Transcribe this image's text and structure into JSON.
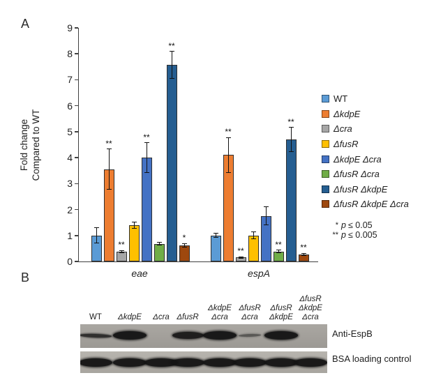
{
  "panels": {
    "a": {
      "label": "A",
      "ylabel_lines": [
        "Fold change",
        "Compared to WT"
      ]
    },
    "b": {
      "label": "B",
      "blot1_label": "Anti-EspB",
      "blot2_label": "BSA loading control"
    }
  },
  "chart_data": {
    "type": "bar",
    "title": "",
    "xlabel": "",
    "ylabel": "Fold change Compared to WT",
    "ylim": [
      0,
      9
    ],
    "yticks": [
      0,
      1,
      2,
      3,
      4,
      5,
      6,
      7,
      8,
      9
    ],
    "grid": false,
    "legend_position": "right",
    "categories": [
      "eae",
      "espA"
    ],
    "series": [
      {
        "name": "WT",
        "italic": false,
        "color": "#5B9BD5",
        "values": [
          1.0,
          1.0
        ],
        "errors": [
          0.3,
          0.08
        ],
        "sig": [
          "",
          ""
        ]
      },
      {
        "name": "ΔkdpE",
        "italic": true,
        "color": "#ED7D31",
        "values": [
          3.55,
          4.1
        ],
        "errors": [
          0.78,
          0.67
        ],
        "sig": [
          "**",
          "**"
        ]
      },
      {
        "name": "Δcra",
        "italic": true,
        "color": "#A6A6A6",
        "values": [
          0.38,
          0.15
        ],
        "errors": [
          0.04,
          0.03
        ],
        "sig": [
          "**",
          "**"
        ]
      },
      {
        "name": "ΔfusR",
        "italic": true,
        "color": "#FFC000",
        "values": [
          1.4,
          1.0
        ],
        "errors": [
          0.13,
          0.13
        ],
        "sig": [
          "",
          ""
        ]
      },
      {
        "name": "ΔkdpE Δcra",
        "italic": true,
        "color": "#4472C4",
        "values": [
          4.0,
          1.75
        ],
        "errors": [
          0.57,
          0.35
        ],
        "sig": [
          "**",
          ""
        ]
      },
      {
        "name": "ΔfusR Δcra",
        "italic": true,
        "color": "#70AD47",
        "values": [
          0.68,
          0.38
        ],
        "errors": [
          0.06,
          0.05
        ],
        "sig": [
          "",
          "**"
        ]
      },
      {
        "name": "ΔfusR ΔkdpE",
        "italic": true,
        "color": "#255E91",
        "values": [
          7.57,
          4.7
        ],
        "errors": [
          0.52,
          0.46
        ],
        "sig": [
          "**",
          "**"
        ]
      },
      {
        "name": "ΔfusR ΔkdpE Δcra",
        "italic": true,
        "color": "#9E480E",
        "values": [
          0.62,
          0.28
        ],
        "errors": [
          0.07,
          0.04
        ],
        "sig": [
          "*",
          "**"
        ]
      }
    ],
    "sig_note": [
      {
        "stars": "*",
        "pvar": "p",
        "rest": "≤ 0.05"
      },
      {
        "stars": "**",
        "pvar": "p",
        "rest": "≤ 0.005"
      }
    ]
  },
  "blot_data": {
    "lanes": [
      {
        "label_lines": [
          "WT"
        ],
        "italic": false,
        "espb_band": "thin",
        "bsa_band": "strong"
      },
      {
        "label_lines": [
          "ΔkdpE"
        ],
        "italic": true,
        "espb_band": "strong",
        "bsa_band": "strong"
      },
      {
        "label_lines": [
          "Δcra"
        ],
        "italic": true,
        "espb_band": "none",
        "bsa_band": "strong"
      },
      {
        "label_lines": [
          "ΔfusR"
        ],
        "italic": true,
        "espb_band": "medium",
        "bsa_band": "strong"
      },
      {
        "label_lines": [
          "ΔkdpE",
          "Δcra"
        ],
        "italic": true,
        "espb_band": "strong",
        "bsa_band": "strong"
      },
      {
        "label_lines": [
          "ΔfusR",
          "Δcra"
        ],
        "italic": true,
        "espb_band": "faint",
        "bsa_band": "strong"
      },
      {
        "label_lines": [
          "ΔfusR",
          "ΔkdpE"
        ],
        "italic": true,
        "espb_band": "strong",
        "bsa_band": "strong"
      },
      {
        "label_lines": [
          "ΔfusR",
          "ΔkdpE",
          "Δcra"
        ],
        "italic": true,
        "espb_band": "none",
        "bsa_band": "strong"
      }
    ]
  }
}
